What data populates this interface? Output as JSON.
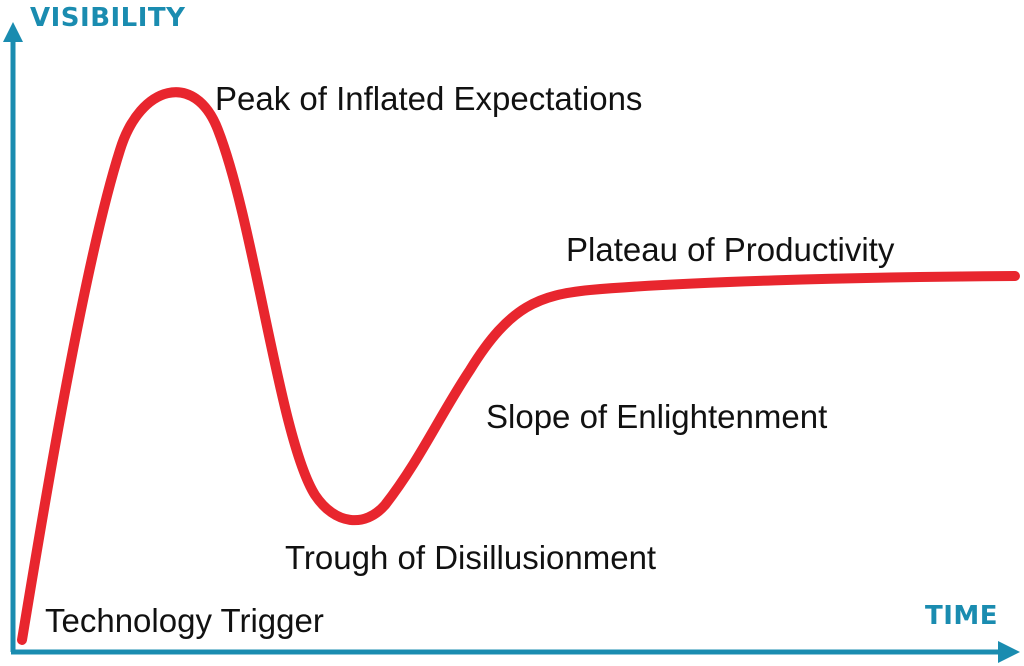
{
  "colors": {
    "axis": "#1a8cb0",
    "curve": "#e8262e",
    "text": "#111111"
  },
  "axes": {
    "y_title": "VISIBILITY",
    "x_title": "TIME"
  },
  "phases": {
    "technology_trigger": "Technology Trigger",
    "peak": "Peak of Inflated Expectations",
    "trough": "Trough of Disillusionment",
    "slope": "Slope of Enlightenment",
    "plateau": "Plateau of Productivity"
  }
}
